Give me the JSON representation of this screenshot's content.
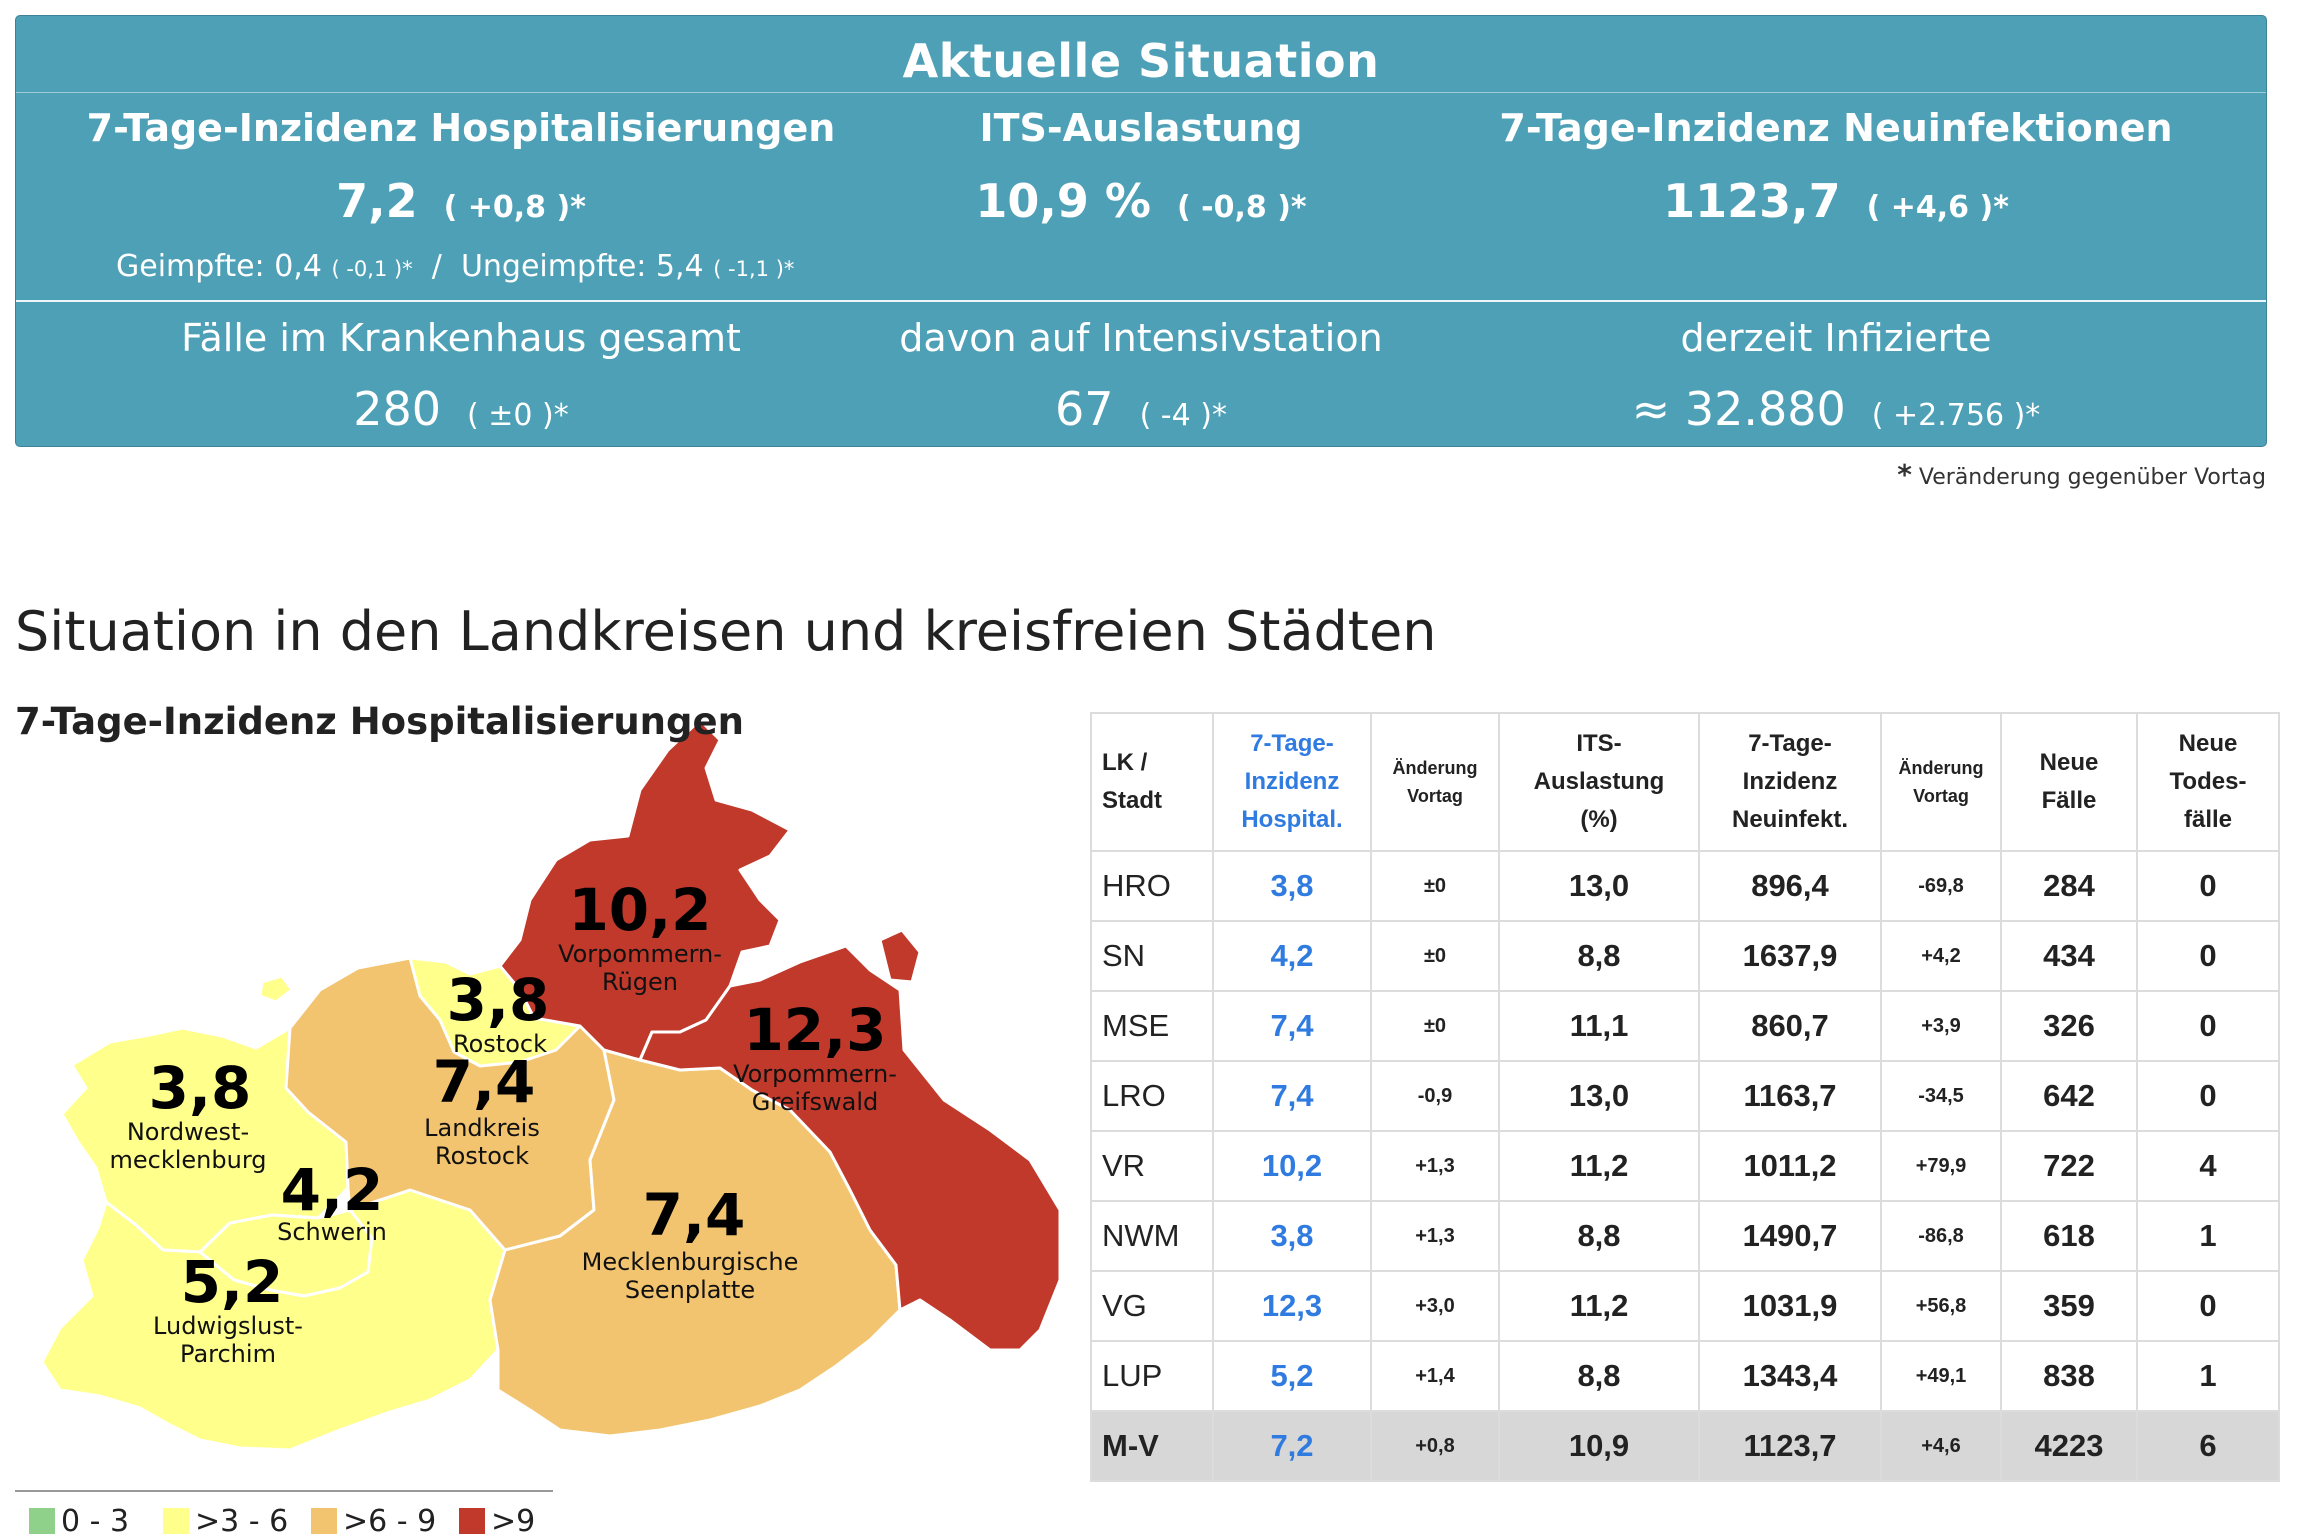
{
  "summary": {
    "title": "Aktuelle Situation",
    "hosp_label": "7-Tage-Inzidenz Hospitalisierungen",
    "hosp_value": "7,2",
    "hosp_delta": "( +0,8 )*",
    "its_label": "ITS-Auslastung",
    "its_value": "10,9 %",
    "its_delta": "( -0,8 )*",
    "inf_label": "7-Tage-Inzidenz Neuinfektionen",
    "inf_value": "1123,7",
    "inf_delta": "( +4,6 )*",
    "vacc_label": "Geimpfte: 0,4",
    "vacc_delta": "( -0,1 )*",
    "separator": "/",
    "unvacc_label": "Ungeimpfte: 5,4",
    "unvacc_delta": "( -1,1 )*",
    "hospital_label": "Fälle im Krankenhaus gesamt",
    "hospital_value": "280",
    "hospital_delta": "( ±0 )*",
    "icu_label": "davon auf Intensivstation",
    "icu_value": "67",
    "icu_delta": "( -4 )*",
    "infected_label": "derzeit Infizierte",
    "infected_value": "≈ 32.880",
    "infected_delta": "( +2.756 )*"
  },
  "footnote": {
    "star": "*",
    "text": "Veränderung gegenüber Vortag"
  },
  "section_title": "Situation in den Landkreisen und kreisfreien Städten",
  "map": {
    "title": "7-Tage-Inzidenz Hospitalisierungen",
    "colors": {
      "c0_3": "#8fd18a",
      "c3_6": "#ffff8c",
      "c6_9": "#f3c46f",
      "c9": "#c0392b"
    },
    "regions": {
      "vr": {
        "value": "10,2",
        "name1": "Vorpommern-",
        "name2": "Rügen"
      },
      "vg": {
        "value": "12,3",
        "name1": "Vorpommern-",
        "name2": "Greifswald"
      },
      "hro": {
        "value": "3,8",
        "name1": "Rostock"
      },
      "lro": {
        "value": "7,4",
        "name1": "Landkreis",
        "name2": "Rostock"
      },
      "nwm": {
        "value": "3,8",
        "name1": "Nordwest-",
        "name2": "mecklenburg"
      },
      "sn": {
        "value": "4,2",
        "name1": "Schwerin"
      },
      "lup": {
        "value": "5,2",
        "name1": "Ludwigslust-",
        "name2": "Parchim"
      },
      "mse": {
        "value": "7,4",
        "name1": "Mecklenburgische",
        "name2": "Seenplatte"
      }
    }
  },
  "legend": [
    "0 - 3",
    ">3 - 6",
    ">6 - 9",
    ">9"
  ],
  "table": {
    "headers": {
      "kz1": "LK /",
      "kz2": "Stadt",
      "inz1": "7-Tage-",
      "inz2": "Inzidenz",
      "inz3": "Hospital.",
      "chg1": "Änderung",
      "chg2": "Vortag",
      "its1": "ITS-",
      "its2": "Auslastung",
      "its3": "(%)",
      "neu1": "7-Tage-",
      "neu2": "Inzidenz",
      "neu3": "Neuinfekt.",
      "chg3": "Änderung",
      "chg4": "Vortag",
      "faelle1": "Neue",
      "faelle2": "Fälle",
      "tod1": "Neue",
      "tod2": "Todes-",
      "tod3": "fälle"
    },
    "rows": [
      [
        "HRO",
        "3,8",
        "±0",
        "13,0",
        "896,4",
        "-69,8",
        "284",
        "0"
      ],
      [
        "SN",
        "4,2",
        "±0",
        "8,8",
        "1637,9",
        "+4,2",
        "434",
        "0"
      ],
      [
        "MSE",
        "7,4",
        "±0",
        "11,1",
        "860,7",
        "+3,9",
        "326",
        "0"
      ],
      [
        "LRO",
        "7,4",
        "-0,9",
        "13,0",
        "1163,7",
        "-34,5",
        "642",
        "0"
      ],
      [
        "VR",
        "10,2",
        "+1,3",
        "11,2",
        "1011,2",
        "+79,9",
        "722",
        "4"
      ],
      [
        "NWM",
        "3,8",
        "+1,3",
        "8,8",
        "1490,7",
        "-86,8",
        "618",
        "1"
      ],
      [
        "VG",
        "12,3",
        "+3,0",
        "11,2",
        "1031,9",
        "+56,8",
        "359",
        "0"
      ],
      [
        "LUP",
        "5,2",
        "+1,4",
        "8,8",
        "1343,4",
        "+49,1",
        "838",
        "1"
      ],
      [
        "M-V",
        "7,2",
        "+0,8",
        "10,9",
        "1123,7",
        "+4,6",
        "4223",
        "6"
      ]
    ]
  }
}
